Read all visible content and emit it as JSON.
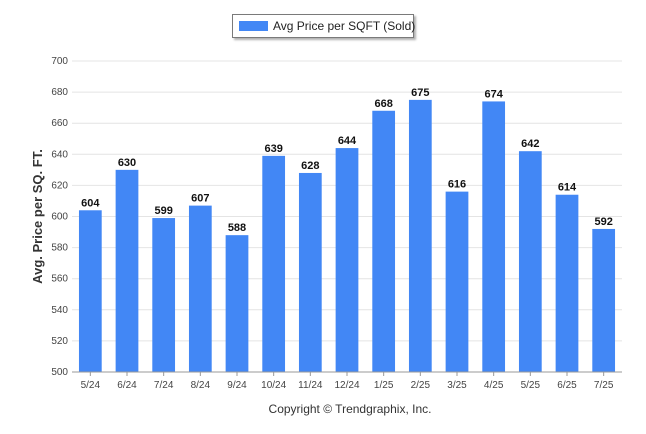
{
  "legend": {
    "label": "Avg Price per SQFT (Sold)",
    "color": "#4287f5"
  },
  "copyright": "Copyright © Trendgraphix, Inc.",
  "chart_data": {
    "type": "bar",
    "ylabel": "Avg. Price per SQ. FT.",
    "xlabel": "",
    "ylim": [
      500,
      700
    ],
    "yticks": [
      500,
      520,
      540,
      560,
      580,
      600,
      620,
      640,
      660,
      680,
      700
    ],
    "grid": true,
    "legend_position": "top-center",
    "categories": [
      "5/24",
      "6/24",
      "7/24",
      "8/24",
      "9/24",
      "10/24",
      "11/24",
      "12/24",
      "1/25",
      "2/25",
      "3/25",
      "4/25",
      "5/25",
      "6/25",
      "7/25"
    ],
    "series": [
      {
        "name": "Avg Price per SQFT (Sold)",
        "values": [
          604,
          630,
          599,
          607,
          588,
          639,
          628,
          644,
          668,
          675,
          616,
          674,
          642,
          614,
          592
        ],
        "color": "#4287f5"
      }
    ]
  }
}
